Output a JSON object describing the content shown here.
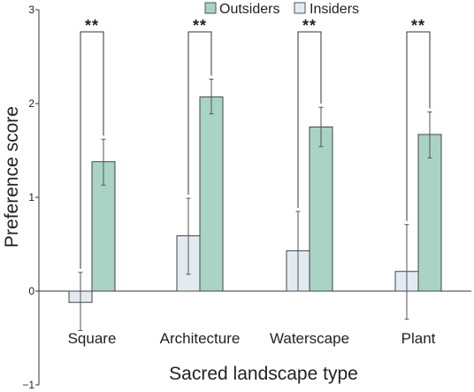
{
  "chart_data": {
    "type": "bar",
    "xlabel": "Sacred landscape type",
    "ylabel": "Preference score",
    "ylim": [
      -1,
      3
    ],
    "yticks": [
      "−1",
      "0",
      "1",
      "2",
      "3"
    ],
    "categories": [
      "Square",
      "Architecture",
      "Waterscape",
      "Plant"
    ],
    "series": [
      {
        "name": "Insiders",
        "color": "#e3ebf2",
        "values": [
          -0.12,
          0.59,
          0.43,
          0.21
        ],
        "error_low": [
          -0.42,
          0.18,
          0.0,
          -0.3
        ],
        "error_high": [
          0.2,
          0.99,
          0.85,
          0.71
        ]
      },
      {
        "name": "Outsiders",
        "color": "#a9d3c4",
        "values": [
          1.38,
          2.07,
          1.75,
          1.67
        ],
        "error_low": [
          1.13,
          1.89,
          1.54,
          1.42
        ],
        "error_high": [
          1.62,
          2.26,
          1.96,
          1.91
        ]
      }
    ],
    "significance": [
      "**",
      "**",
      "**",
      "**"
    ],
    "legend_position": "top-right"
  }
}
